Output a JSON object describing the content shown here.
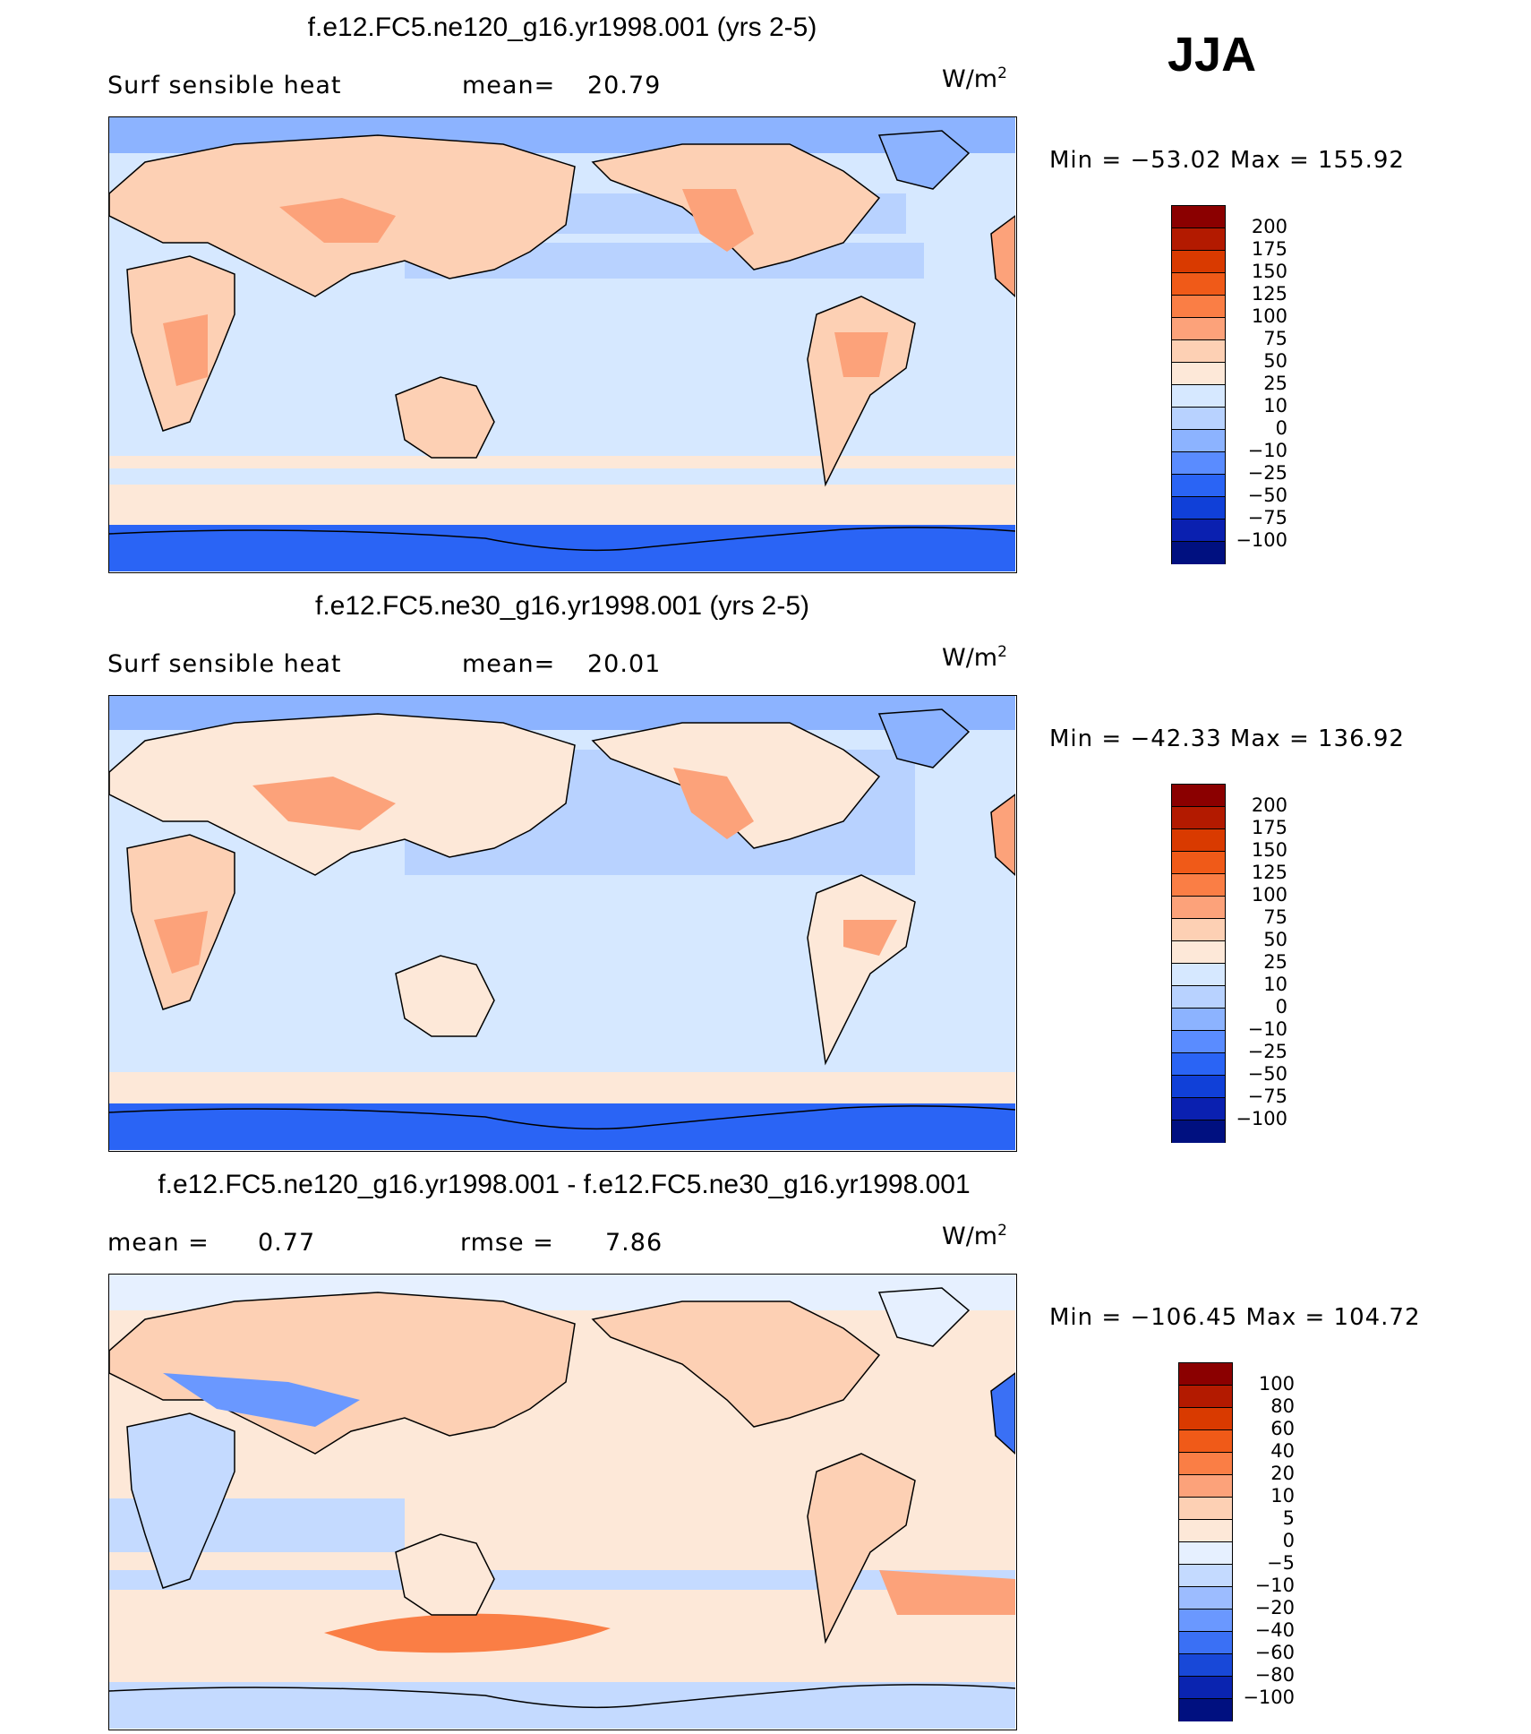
{
  "season": "JJA",
  "panels": [
    {
      "title": "f.e12.FC5.ne120_g16.yr1998.001 (yrs 2-5)",
      "variable": "Surf  sensible  heat",
      "stat_label": "mean=",
      "stat_value": "20.79",
      "units_base": "W/m",
      "units_exp": "2",
      "minmax": "Min  =  −53.02  Max  =  155.92",
      "colorbar": {
        "colors": [
          "#8b0000",
          "#b31a00",
          "#d93a00",
          "#f05a18",
          "#fa7e45",
          "#fca27a",
          "#fdd0b4",
          "#fde8d8",
          "#d6e8ff",
          "#b8d2ff",
          "#8cb3ff",
          "#5a8cff",
          "#2a64f5",
          "#1040d8",
          "#0a20b0",
          "#001080"
        ],
        "labels": [
          "200",
          "175",
          "150",
          "125",
          "100",
          "75",
          "50",
          "25",
          "10",
          "0",
          "−10",
          "−25",
          "−50",
          "−75",
          "−100"
        ]
      }
    },
    {
      "title": "f.e12.FC5.ne30_g16.yr1998.001 (yrs 2-5)",
      "variable": "Surf  sensible  heat",
      "stat_label": "mean=",
      "stat_value": "20.01",
      "units_base": "W/m",
      "units_exp": "2",
      "minmax": "Min  =  −42.33  Max  =  136.92",
      "colorbar": {
        "colors": [
          "#8b0000",
          "#b31a00",
          "#d93a00",
          "#f05a18",
          "#fa7e45",
          "#fca27a",
          "#fdd0b4",
          "#fde8d8",
          "#d6e8ff",
          "#b8d2ff",
          "#8cb3ff",
          "#5a8cff",
          "#2a64f5",
          "#1040d8",
          "#0a20b0",
          "#001080"
        ],
        "labels": [
          "200",
          "175",
          "150",
          "125",
          "100",
          "75",
          "50",
          "25",
          "10",
          "0",
          "−10",
          "−25",
          "−50",
          "−75",
          "−100"
        ]
      }
    },
    {
      "title": "f.e12.FC5.ne120_g16.yr1998.001 - f.e12.FC5.ne30_g16.yr1998.001",
      "variable": "mean  =",
      "variable_value": "0.77",
      "stat_label": "rmse  =",
      "stat_value": "7.86",
      "units_base": "W/m",
      "units_exp": "2",
      "minmax": "Min  =  −106.45  Max  =  104.72",
      "colorbar": {
        "colors": [
          "#8b0000",
          "#b31a00",
          "#d93a00",
          "#f05a18",
          "#fa7e45",
          "#fca27a",
          "#fdd0b4",
          "#fde8d8",
          "#e6f0ff",
          "#c4daff",
          "#9cbcff",
          "#6a98ff",
          "#3a70f5",
          "#1848d8",
          "#0a24b0",
          "#001080"
        ],
        "labels": [
          "100",
          "80",
          "60",
          "40",
          "20",
          "10",
          "5",
          "0",
          "−5",
          "−10",
          "−20",
          "−40",
          "−60",
          "−80",
          "−100"
        ]
      }
    }
  ]
}
